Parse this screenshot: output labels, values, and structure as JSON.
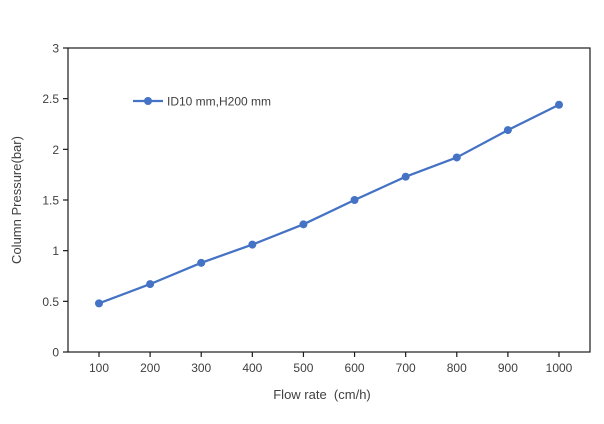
{
  "chart_data": {
    "type": "line",
    "title": "",
    "xlabel": "Flow rate  (cm/h)",
    "ylabel": "Column Pressure(bar)",
    "x": [
      100,
      200,
      300,
      400,
      500,
      600,
      700,
      800,
      900,
      1000
    ],
    "series": [
      {
        "name": "ID10 mm,H200 mm",
        "values": [
          0.48,
          0.67,
          0.88,
          1.06,
          1.26,
          1.5,
          1.73,
          1.92,
          2.19,
          2.44
        ]
      }
    ],
    "xlim": [
      100,
      1000
    ],
    "ylim": [
      0,
      3
    ],
    "x_ticks": [
      100,
      200,
      300,
      400,
      500,
      600,
      700,
      800,
      900,
      1000
    ],
    "x_tick_labels": [
      "100",
      "200",
      "300",
      "400",
      "500",
      "600",
      "700",
      "800",
      "900",
      "1000"
    ],
    "y_ticks": [
      0,
      0.5,
      1,
      1.5,
      2,
      2.5,
      3
    ],
    "y_tick_labels": [
      "0",
      "0.5",
      "1",
      "1.5",
      "2",
      "2.5",
      "3"
    ],
    "grid": false,
    "legend_position": "inside-upper-left",
    "colors": {
      "series": "#4472C4",
      "axis": "#1a1a1a",
      "tick_text": "#404040",
      "background": "#ffffff"
    }
  }
}
